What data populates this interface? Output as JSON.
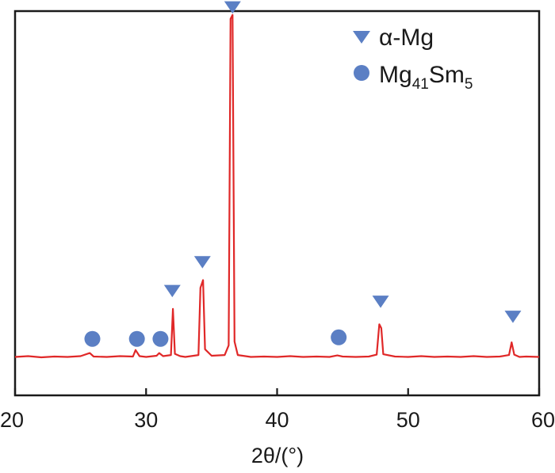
{
  "chart_data": {
    "type": "line",
    "xlabel": "2θ/(°)",
    "ylabel": "",
    "xlim": [
      20,
      60
    ],
    "ylim": [
      0,
      100
    ],
    "x_ticks": [
      "20",
      "30",
      "40",
      "50",
      "60"
    ],
    "y_ticks_shown": false,
    "grid": false,
    "legend_position": "top-right",
    "line_color": "#e02828",
    "marker_color": "#5b7fc4",
    "series": [
      {
        "points": [
          [
            20.0,
            10.0
          ],
          [
            21.0,
            10.2
          ],
          [
            22.0,
            9.9
          ],
          [
            23.0,
            10.1
          ],
          [
            24.0,
            10.0
          ],
          [
            25.0,
            10.2
          ],
          [
            25.7,
            11.0
          ],
          [
            26.0,
            10.1
          ],
          [
            27.0,
            10.0
          ],
          [
            28.0,
            10.2
          ],
          [
            29.0,
            10.1
          ],
          [
            29.2,
            11.8
          ],
          [
            29.5,
            10.2
          ],
          [
            30.0,
            10.0
          ],
          [
            30.8,
            10.3
          ],
          [
            31.0,
            11.0
          ],
          [
            31.3,
            10.2
          ],
          [
            31.9,
            10.5
          ],
          [
            32.05,
            22.5
          ],
          [
            32.2,
            10.8
          ],
          [
            32.6,
            10.2
          ],
          [
            33.0,
            10.0
          ],
          [
            34.0,
            10.5
          ],
          [
            34.15,
            28.0
          ],
          [
            34.35,
            30.0
          ],
          [
            34.5,
            12.0
          ],
          [
            35.0,
            10.3
          ],
          [
            36.0,
            10.5
          ],
          [
            36.3,
            13.0
          ],
          [
            36.45,
            98.0
          ],
          [
            36.6,
            99.0
          ],
          [
            36.75,
            14.0
          ],
          [
            37.0,
            10.5
          ],
          [
            38.0,
            10.0
          ],
          [
            39.0,
            10.1
          ],
          [
            40.0,
            10.0
          ],
          [
            41.0,
            10.2
          ],
          [
            42.0,
            10.0
          ],
          [
            43.0,
            10.1
          ],
          [
            44.0,
            10.0
          ],
          [
            44.6,
            10.4
          ],
          [
            45.0,
            10.1
          ],
          [
            46.0,
            10.0
          ],
          [
            47.0,
            10.1
          ],
          [
            47.6,
            10.6
          ],
          [
            47.8,
            18.5
          ],
          [
            47.95,
            17.5
          ],
          [
            48.1,
            10.7
          ],
          [
            49.0,
            10.1
          ],
          [
            50.0,
            10.0
          ],
          [
            51.0,
            10.2
          ],
          [
            52.0,
            10.0
          ],
          [
            53.0,
            10.1
          ],
          [
            54.0,
            10.0
          ],
          [
            55.0,
            10.2
          ],
          [
            56.0,
            10.0
          ],
          [
            57.0,
            10.1
          ],
          [
            57.7,
            10.5
          ],
          [
            57.9,
            13.8
          ],
          [
            58.1,
            10.6
          ],
          [
            58.5,
            10.0
          ],
          [
            59.0,
            10.1
          ],
          [
            60.0,
            10.0
          ]
        ]
      }
    ],
    "markers": [
      {
        "phase": "Mg41Sm5",
        "shape": "circle",
        "x": 25.9,
        "y": 14.7
      },
      {
        "phase": "Mg41Sm5",
        "shape": "circle",
        "x": 29.3,
        "y": 14.7
      },
      {
        "phase": "Mg41Sm5",
        "shape": "circle",
        "x": 31.1,
        "y": 14.7
      },
      {
        "phase": "α-Mg",
        "shape": "triangle",
        "x": 32.0,
        "y": 27.2
      },
      {
        "phase": "α-Mg",
        "shape": "triangle",
        "x": 34.3,
        "y": 34.7
      },
      {
        "phase": "α-Mg",
        "shape": "triangle",
        "x": 36.6,
        "y": 101.0
      },
      {
        "phase": "Mg41Sm5",
        "shape": "circle",
        "x": 44.7,
        "y": 15.1
      },
      {
        "phase": "α-Mg",
        "shape": "triangle",
        "x": 47.9,
        "y": 24.4
      },
      {
        "phase": "α-Mg",
        "shape": "triangle",
        "x": 58.0,
        "y": 20.5
      }
    ],
    "legend": [
      {
        "shape": "triangle",
        "label": "α-Mg",
        "label_main": "α-Mg",
        "label_parts": []
      },
      {
        "shape": "circle",
        "label": "Mg41Sm5",
        "label_parts": [
          "Mg",
          "41",
          "Sm",
          "5"
        ]
      }
    ]
  }
}
